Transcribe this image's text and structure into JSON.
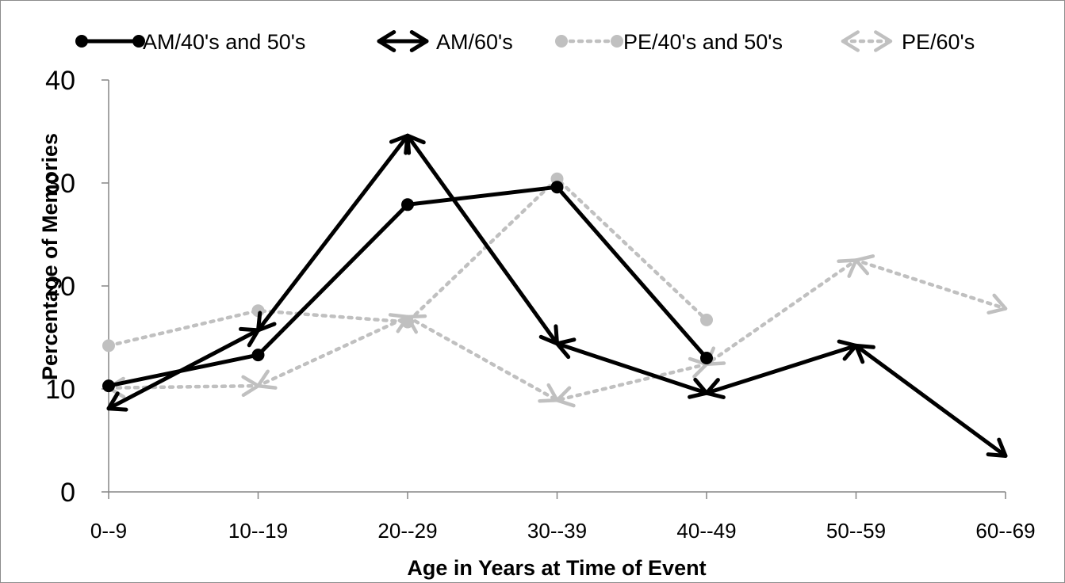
{
  "chart_data": {
    "type": "line",
    "title": "",
    "xlabel": "Age in Years at Time of Event",
    "ylabel": "Percentage of Memories",
    "categories": [
      "0--9",
      "10--19",
      "20--29",
      "30--39",
      "40--49",
      "50--59",
      "60--69"
    ],
    "yticks": [
      0,
      10,
      20,
      30,
      40
    ],
    "ylim": [
      0,
      40
    ],
    "grid": false,
    "legend_position": "top",
    "series": [
      {
        "name": "AM/40's and 50's",
        "values": [
          10.3,
          13.3,
          27.9,
          29.6,
          13.0,
          null,
          null
        ],
        "color": "#000000",
        "dash": "solid",
        "marker": "circle"
      },
      {
        "name": "AM/60's",
        "values": [
          8.1,
          15.7,
          34.6,
          14.4,
          9.6,
          14.2,
          3.5
        ],
        "color": "#000000",
        "dash": "solid",
        "marker": "arrow"
      },
      {
        "name": "PE/40's and 50's",
        "values": [
          14.2,
          17.6,
          16.5,
          30.4,
          16.7,
          null,
          null
        ],
        "color": "#c0c0c0",
        "dash": "dotted",
        "marker": "circle"
      },
      {
        "name": "PE/60's",
        "values": [
          10.1,
          10.3,
          17.0,
          8.9,
          12.4,
          22.5,
          17.8
        ],
        "color": "#c0c0c0",
        "dash": "dotted",
        "marker": "arrow"
      }
    ]
  }
}
